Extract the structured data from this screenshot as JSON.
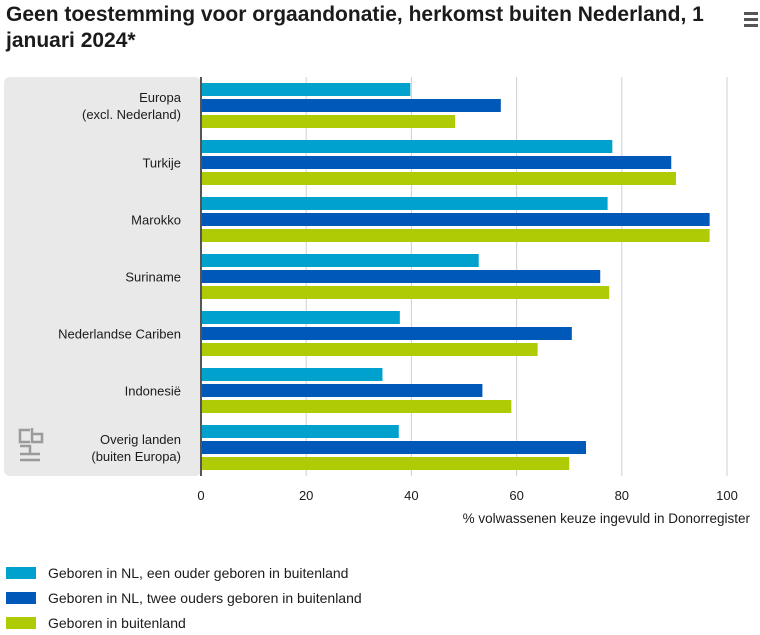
{
  "title": "Geen toestemming voor orgaandonatie, herkomst buiten Nederland, 1 januari 2024*",
  "menu_icon": "hamburger-menu-icon",
  "logo": "cbs-logo",
  "colors": {
    "series1": "#00a1cd",
    "series2": "#0058b8",
    "series3": "#afcb05",
    "panel": "#e9e9e9",
    "grid": "#cfcfcf",
    "axis": "#555555"
  },
  "chart_data": {
    "type": "bar",
    "orientation": "horizontal",
    "categories": [
      [
        "Europa",
        "(excl. Nederland)"
      ],
      [
        "Turkije"
      ],
      [
        "Marokko"
      ],
      [
        "Suriname"
      ],
      [
        "Nederlandse Cariben"
      ],
      [
        "Indonesië"
      ],
      [
        "Overig landen",
        "(buiten Europa)"
      ]
    ],
    "series": [
      {
        "name": "Geboren in NL, een ouder geboren in buitenland",
        "values": [
          39.8,
          78.2,
          77.3,
          52.8,
          37.8,
          34.5,
          37.6
        ]
      },
      {
        "name": "Geboren in NL, twee ouders geboren in buitenland",
        "values": [
          57.0,
          89.4,
          96.7,
          75.9,
          70.5,
          53.5,
          73.2
        ]
      },
      {
        "name": "Geboren in buitenland",
        "values": [
          48.3,
          90.3,
          96.7,
          77.6,
          64.0,
          59.0,
          70.0
        ]
      }
    ],
    "xlabel": "% volwassenen keuze ingevuld in Donorregister",
    "xlim": [
      0,
      100
    ],
    "xticks": [
      0,
      20,
      40,
      60,
      80,
      100
    ],
    "grid": true,
    "legend_position": "bottom"
  }
}
